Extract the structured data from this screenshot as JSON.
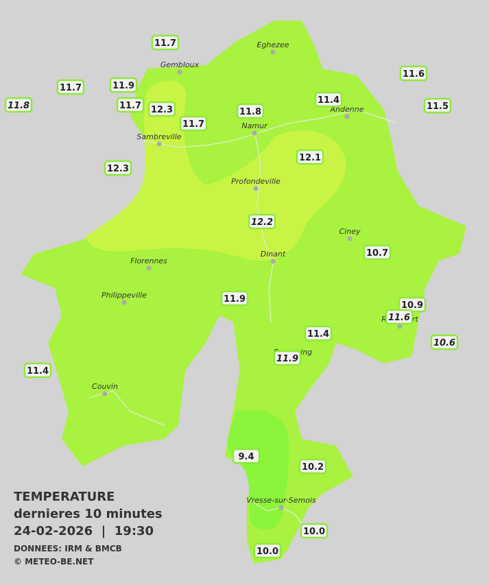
{
  "legend": {
    "title": "TEMPERATURE",
    "subtitle": "dernieres 10 minutes",
    "datetime": "24-02-2026  |  19:30",
    "source": "DONNEES: IRM & BMCB",
    "copyright": "© METEO-BE.NET"
  },
  "towns": [
    "Eghezee",
    "Gembloux",
    "Andenne",
    "Namur",
    "Sambreville",
    "Profondeville",
    "Ciney",
    "Dinant",
    "Florennes",
    "Philippeville",
    "Rochefort",
    "Beauraing",
    "Couvin",
    "Vresse-sur-Semois"
  ],
  "stations": [
    {
      "label": "11.7",
      "italic": false
    },
    {
      "label": "11.9",
      "italic": false
    },
    {
      "label": "11.7",
      "italic": false
    },
    {
      "label": "11.8",
      "italic": true
    },
    {
      "label": "11.7",
      "italic": false
    },
    {
      "label": "12.3",
      "italic": false
    },
    {
      "label": "11.7",
      "italic": false
    },
    {
      "label": "11.8",
      "italic": false
    },
    {
      "label": "11.4",
      "italic": false
    },
    {
      "label": "11.6",
      "italic": false
    },
    {
      "label": "11.5",
      "italic": false
    },
    {
      "label": "12.3",
      "italic": false
    },
    {
      "label": "12.1",
      "italic": false
    },
    {
      "label": "12.2",
      "italic": true
    },
    {
      "label": "10.7",
      "italic": false
    },
    {
      "label": "11.9",
      "italic": false
    },
    {
      "label": "10.9",
      "italic": false
    },
    {
      "label": "11.6",
      "italic": true
    },
    {
      "label": "11.4",
      "italic": false
    },
    {
      "label": "11.9",
      "italic": true
    },
    {
      "label": "10.6",
      "italic": true
    },
    {
      "label": "11.4",
      "italic": false
    },
    {
      "label": "9.4",
      "italic": false
    },
    {
      "label": "10.2",
      "italic": false
    },
    {
      "label": "10.0",
      "italic": false
    },
    {
      "label": "10.0",
      "italic": false
    }
  ]
}
